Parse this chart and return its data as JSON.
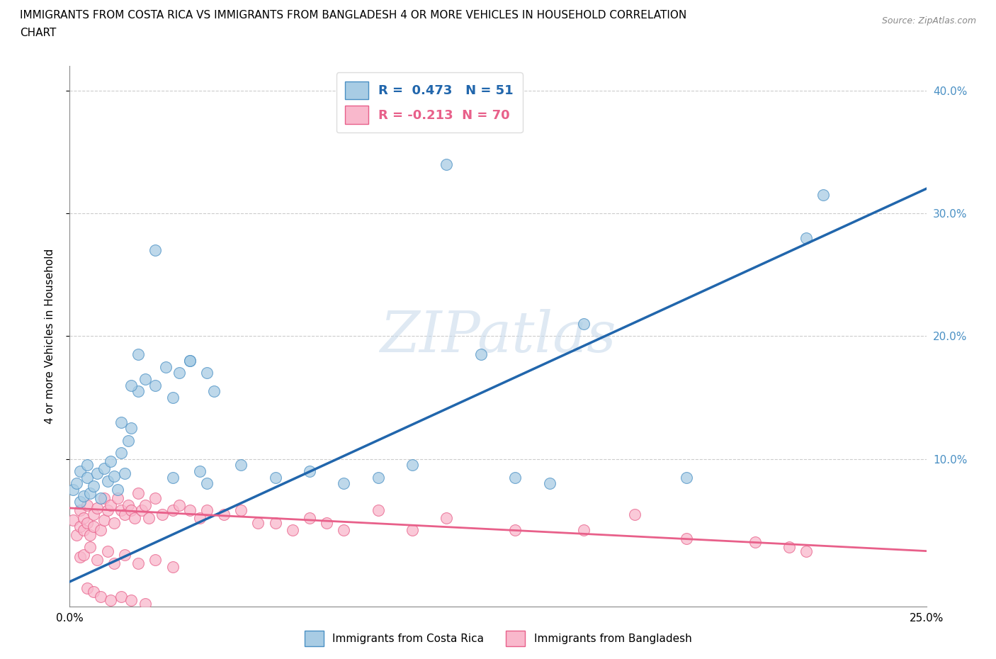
{
  "title_line1": "IMMIGRANTS FROM COSTA RICA VS IMMIGRANTS FROM BANGLADESH 4 OR MORE VEHICLES IN HOUSEHOLD CORRELATION",
  "title_line2": "CHART",
  "source": "Source: ZipAtlas.com",
  "ylabel": "4 or more Vehicles in Household",
  "watermark": "ZIPatlas",
  "xlim": [
    0.0,
    0.25
  ],
  "ylim": [
    -0.02,
    0.42
  ],
  "costa_rica_color": "#a8cce4",
  "bangladesh_color": "#f9b8cc",
  "costa_rica_edge_color": "#4a90c4",
  "bangladesh_edge_color": "#e8608a",
  "costa_rica_line_color": "#2166ac",
  "bangladesh_line_color": "#e8608a",
  "costa_rica_R": 0.473,
  "costa_rica_N": 51,
  "bangladesh_R": -0.213,
  "bangladesh_N": 70,
  "legend_label_1": "Immigrants from Costa Rica",
  "legend_label_2": "Immigrants from Bangladesh",
  "cr_line_x0": 0.0,
  "cr_line_y0": 0.0,
  "cr_line_x1": 0.25,
  "cr_line_y1": 0.32,
  "bd_line_x0": 0.0,
  "bd_line_y0": 0.06,
  "bd_line_x1": 0.25,
  "bd_line_y1": 0.025,
  "costa_rica_points_x": [
    0.001,
    0.002,
    0.003,
    0.003,
    0.004,
    0.005,
    0.005,
    0.006,
    0.007,
    0.008,
    0.009,
    0.01,
    0.011,
    0.012,
    0.013,
    0.014,
    0.015,
    0.016,
    0.017,
    0.018,
    0.02,
    0.022,
    0.025,
    0.028,
    0.03,
    0.032,
    0.035,
    0.038,
    0.04,
    0.042,
    0.015,
    0.018,
    0.02,
    0.025,
    0.03,
    0.035,
    0.04,
    0.05,
    0.06,
    0.07,
    0.08,
    0.09,
    0.1,
    0.11,
    0.12,
    0.13,
    0.14,
    0.15,
    0.18,
    0.215,
    0.22
  ],
  "costa_rica_points_y": [
    0.075,
    0.08,
    0.065,
    0.09,
    0.07,
    0.085,
    0.095,
    0.072,
    0.078,
    0.088,
    0.068,
    0.092,
    0.082,
    0.098,
    0.086,
    0.075,
    0.105,
    0.088,
    0.115,
    0.125,
    0.155,
    0.165,
    0.27,
    0.175,
    0.085,
    0.17,
    0.18,
    0.09,
    0.08,
    0.155,
    0.13,
    0.16,
    0.185,
    0.16,
    0.15,
    0.18,
    0.17,
    0.095,
    0.085,
    0.09,
    0.08,
    0.085,
    0.095,
    0.34,
    0.185,
    0.085,
    0.08,
    0.21,
    0.085,
    0.28,
    0.315
  ],
  "bangladesh_points_x": [
    0.001,
    0.002,
    0.003,
    0.003,
    0.004,
    0.004,
    0.005,
    0.005,
    0.006,
    0.007,
    0.007,
    0.008,
    0.009,
    0.01,
    0.01,
    0.011,
    0.012,
    0.013,
    0.014,
    0.015,
    0.016,
    0.017,
    0.018,
    0.019,
    0.02,
    0.021,
    0.022,
    0.023,
    0.025,
    0.027,
    0.03,
    0.032,
    0.035,
    0.038,
    0.04,
    0.045,
    0.05,
    0.055,
    0.06,
    0.065,
    0.07,
    0.075,
    0.08,
    0.09,
    0.1,
    0.11,
    0.13,
    0.15,
    0.165,
    0.18,
    0.2,
    0.21,
    0.215,
    0.005,
    0.007,
    0.009,
    0.012,
    0.015,
    0.018,
    0.022,
    0.003,
    0.004,
    0.006,
    0.008,
    0.011,
    0.013,
    0.016,
    0.02,
    0.025,
    0.03
  ],
  "bangladesh_points_y": [
    0.05,
    0.038,
    0.058,
    0.045,
    0.052,
    0.042,
    0.048,
    0.062,
    0.038,
    0.055,
    0.045,
    0.06,
    0.042,
    0.068,
    0.05,
    0.058,
    0.062,
    0.048,
    0.068,
    0.058,
    0.055,
    0.062,
    0.058,
    0.052,
    0.072,
    0.058,
    0.062,
    0.052,
    0.068,
    0.055,
    0.058,
    0.062,
    0.058,
    0.052,
    0.058,
    0.055,
    0.058,
    0.048,
    0.048,
    0.042,
    0.052,
    0.048,
    0.042,
    0.058,
    0.042,
    0.052,
    0.042,
    0.042,
    0.055,
    0.035,
    0.032,
    0.028,
    0.025,
    -0.005,
    -0.008,
    -0.012,
    -0.015,
    -0.012,
    -0.015,
    -0.018,
    0.02,
    0.022,
    0.028,
    0.018,
    0.025,
    0.015,
    0.022,
    0.015,
    0.018,
    0.012
  ]
}
